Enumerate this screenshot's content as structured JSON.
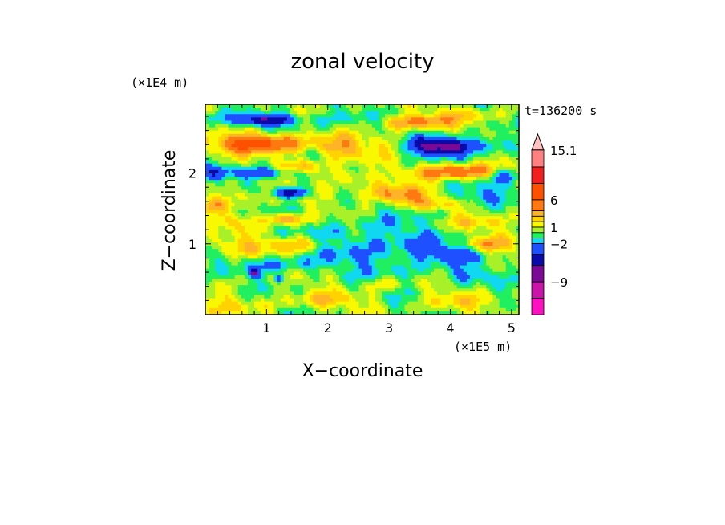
{
  "chart_data": {
    "type": "heatmap",
    "title": "zonal velocity",
    "xlabel": "X−coordinate",
    "ylabel": "Z−coordinate",
    "x_unit": "(×1E5 m)",
    "y_unit": "(×1E4 m)",
    "time_label": "t=136200 s",
    "xlim": [
      0,
      5.12
    ],
    "ylim": [
      0,
      2.97
    ],
    "x_ticks": [
      "1",
      "2",
      "3",
      "4",
      "5"
    ],
    "x_tick_values": [
      1,
      2,
      3,
      4,
      5
    ],
    "y_ticks": [
      "1",
      "2"
    ],
    "y_tick_values": [
      1,
      2
    ],
    "colorbar": {
      "labels": [
        "15.1",
        "6",
        "1",
        "−2",
        "−9"
      ],
      "label_values": [
        15.1,
        6,
        1,
        -2,
        -9
      ],
      "range": [
        -15,
        18
      ],
      "levels": [
        {
          "lo": -15,
          "hi": -12,
          "color": "#ff10c0"
        },
        {
          "lo": -12,
          "hi": -9,
          "color": "#c814a8"
        },
        {
          "lo": -9,
          "hi": -6,
          "color": "#7a0a96"
        },
        {
          "lo": -6,
          "hi": -4,
          "color": "#0a0aa8"
        },
        {
          "lo": -4,
          "hi": -2,
          "color": "#1e50ff"
        },
        {
          "lo": -2,
          "hi": -1,
          "color": "#10d8f0"
        },
        {
          "lo": -1,
          "hi": 0,
          "color": "#20f060"
        },
        {
          "lo": 0,
          "hi": 1,
          "color": "#a8f028"
        },
        {
          "lo": 1,
          "hi": 2,
          "color": "#f8f800"
        },
        {
          "lo": 2,
          "hi": 3,
          "color": "#ffd200"
        },
        {
          "lo": 3,
          "hi": 4,
          "color": "#ffb428"
        },
        {
          "lo": 4,
          "hi": 6,
          "color": "#ff7810"
        },
        {
          "lo": 6,
          "hi": 9,
          "color": "#ff5000"
        },
        {
          "lo": 9,
          "hi": 12,
          "color": "#f02020"
        },
        {
          "lo": 12,
          "hi": 15.1,
          "color": "#ff8080"
        },
        {
          "lo": 15.1,
          "hi": 18,
          "color": "#ffc0c0"
        }
      ]
    },
    "features": [
      {
        "x": 1.0,
        "z": 2.75,
        "amp": -6,
        "sx": 0.5,
        "sz": 0.08
      },
      {
        "x": 0.1,
        "z": 2.75,
        "amp": -2,
        "sx": 0.2,
        "sz": 0.12
      },
      {
        "x": 2.1,
        "z": 2.78,
        "amp": -2,
        "sx": 0.5,
        "sz": 0.12
      },
      {
        "x": 3.4,
        "z": 2.72,
        "amp": 4,
        "sx": 0.55,
        "sz": 0.1
      },
      {
        "x": 4.3,
        "z": 2.82,
        "amp": 2,
        "sx": 0.5,
        "sz": 0.1
      },
      {
        "x": 0.9,
        "z": 2.42,
        "amp": 7,
        "sx": 0.7,
        "sz": 0.13
      },
      {
        "x": 2.2,
        "z": 2.35,
        "amp": 3,
        "sx": 0.45,
        "sz": 0.15
      },
      {
        "x": 3.9,
        "z": 2.38,
        "amp": -8,
        "sx": 0.55,
        "sz": 0.12
      },
      {
        "x": 4.7,
        "z": 2.42,
        "amp": -2,
        "sx": 0.25,
        "sz": 0.15
      },
      {
        "x": 3.0,
        "z": 2.42,
        "amp": 1.5,
        "sx": 0.3,
        "sz": 0.1
      },
      {
        "x": 0.9,
        "z": 2.0,
        "amp": -5,
        "sx": 0.45,
        "sz": 0.08
      },
      {
        "x": 0.2,
        "z": 2.0,
        "amp": -3,
        "sx": 0.2,
        "sz": 0.1
      },
      {
        "x": 1.6,
        "z": 2.1,
        "amp": 3,
        "sx": 0.3,
        "sz": 0.1
      },
      {
        "x": 4.1,
        "z": 2.02,
        "amp": 6,
        "sx": 0.6,
        "sz": 0.1
      },
      {
        "x": 4.9,
        "z": 1.95,
        "amp": -3,
        "sx": 0.25,
        "sz": 0.12
      },
      {
        "x": 2.3,
        "z": 1.95,
        "amp": 2.5,
        "sx": 0.35,
        "sz": 0.12
      },
      {
        "x": 1.4,
        "z": 1.72,
        "amp": -6,
        "sx": 0.3,
        "sz": 0.07
      },
      {
        "x": 0.6,
        "z": 1.7,
        "amp": 2,
        "sx": 0.35,
        "sz": 0.1
      },
      {
        "x": 3.1,
        "z": 1.7,
        "amp": 5,
        "sx": 0.5,
        "sz": 0.12
      },
      {
        "x": 4.4,
        "z": 1.7,
        "amp": -2,
        "sx": 0.6,
        "sz": 0.12
      },
      {
        "x": 3.7,
        "z": 1.55,
        "amp": 2,
        "sx": 0.4,
        "sz": 0.08
      },
      {
        "x": 0.2,
        "z": 1.55,
        "amp": 2,
        "sx": 0.35,
        "sz": 0.1
      },
      {
        "x": 1.3,
        "z": 1.35,
        "amp": 5,
        "sx": 0.3,
        "sz": 0.08
      },
      {
        "x": 0.5,
        "z": 1.32,
        "amp": 2,
        "sx": 0.3,
        "sz": 0.1
      },
      {
        "x": 4.5,
        "z": 1.3,
        "amp": 1.5,
        "sx": 0.6,
        "sz": 0.1
      },
      {
        "x": 2.5,
        "z": 1.05,
        "amp": -2,
        "sx": 1.0,
        "sz": 0.35
      },
      {
        "x": 3.3,
        "z": 0.8,
        "amp": -1.5,
        "sx": 0.8,
        "sz": 0.4
      },
      {
        "x": 4.0,
        "z": 0.85,
        "amp": -3,
        "sx": 0.4,
        "sz": 0.12
      },
      {
        "x": 0.5,
        "z": 0.95,
        "amp": 2,
        "sx": 0.5,
        "sz": 0.12
      },
      {
        "x": 1.5,
        "z": 1.0,
        "amp": 3,
        "sx": 0.5,
        "sz": 0.12
      },
      {
        "x": 4.6,
        "z": 1.0,
        "amp": 3,
        "sx": 0.35,
        "sz": 0.1
      },
      {
        "x": 1.2,
        "z": 0.7,
        "amp": -2.5,
        "sx": 0.6,
        "sz": 0.12
      },
      {
        "x": 0.8,
        "z": 0.58,
        "amp": -5,
        "sx": 0.08,
        "sz": 0.05
      },
      {
        "x": 1.2,
        "z": 0.5,
        "amp": -5,
        "sx": 0.08,
        "sz": 0.05
      },
      {
        "x": 4.3,
        "z": 0.55,
        "amp": -2,
        "sx": 0.4,
        "sz": 0.1
      },
      {
        "x": 2.9,
        "z": 0.45,
        "amp": 2,
        "sx": 0.35,
        "sz": 0.1
      },
      {
        "x": 0.6,
        "z": 0.15,
        "amp": 1,
        "sx": 0.8,
        "sz": 0.15
      },
      {
        "x": 2.0,
        "z": 0.2,
        "amp": 2,
        "sx": 0.6,
        "sz": 0.1
      },
      {
        "x": 4.0,
        "z": 0.2,
        "amp": 1.5,
        "sx": 0.6,
        "sz": 0.12
      }
    ]
  }
}
